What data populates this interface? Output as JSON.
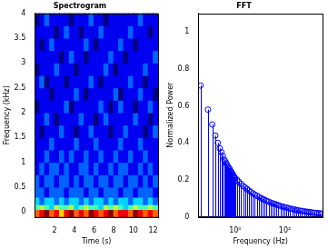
{
  "chart_data": [
    {
      "type": "heatmap",
      "title": "Spectrogram",
      "xlabel": "Time (s)",
      "ylabel": "Frequency (kHz)",
      "color": "jet",
      "grid": false,
      "xlim": [
        0,
        12.5
      ],
      "xticks": [
        2,
        4,
        6,
        8,
        10,
        12
      ],
      "ylim": [
        -0.1,
        4
      ],
      "yticks": [
        0,
        0.5,
        1,
        1.5,
        2,
        2.5,
        3,
        3.5,
        4
      ],
      "x_edges": [
        0,
        0.5,
        1,
        1.5,
        2,
        2.5,
        3,
        3.5,
        4,
        4.5,
        5,
        5.5,
        6,
        6.5,
        7,
        7.5,
        8,
        8.5,
        9,
        9.5,
        10,
        10.5,
        11,
        11.5,
        12,
        12.5
      ],
      "y_edges": [
        -0.1,
        0.05,
        0.15,
        0.3,
        0.5,
        0.75,
        1,
        1.25,
        1.5,
        1.75,
        2,
        2.25,
        2.5,
        2.75,
        3,
        3.25,
        3.5,
        3.75,
        4
      ],
      "cells": [
        [
          8,
          9,
          10,
          8,
          9,
          7,
          9,
          10,
          8,
          9,
          8,
          10,
          9,
          8,
          9,
          10,
          8,
          9,
          9,
          8,
          10,
          9,
          8,
          9,
          8
        ],
        [
          5,
          6,
          5,
          4,
          6,
          5,
          5,
          6,
          4,
          5,
          6,
          5,
          5,
          4,
          6,
          5,
          6,
          5,
          4,
          5,
          6,
          5,
          5,
          6,
          5
        ],
        [
          4,
          3,
          4,
          4,
          3,
          4,
          3,
          4,
          4,
          3,
          4,
          3,
          4,
          4,
          3,
          4,
          3,
          4,
          4,
          3,
          4,
          4,
          3,
          4,
          3
        ],
        [
          3,
          3,
          2,
          3,
          3,
          3,
          2,
          3,
          3,
          3,
          2,
          3,
          3,
          2,
          3,
          3,
          3,
          2,
          3,
          3,
          2,
          3,
          3,
          3,
          2
        ],
        [
          3,
          2,
          3,
          3,
          2,
          3,
          3,
          2,
          3,
          2,
          3,
          3,
          2,
          3,
          3,
          2,
          3,
          3,
          2,
          3,
          3,
          2,
          3,
          2,
          3
        ],
        [
          2,
          3,
          2,
          3,
          3,
          2,
          3,
          2,
          2,
          3,
          3,
          2,
          3,
          2,
          2,
          3,
          2,
          3,
          3,
          2,
          2,
          3,
          2,
          3,
          2
        ],
        [
          2,
          2,
          3,
          2,
          2,
          3,
          2,
          3,
          2,
          2,
          3,
          2,
          2,
          3,
          2,
          2,
          3,
          2,
          2,
          3,
          2,
          2,
          3,
          2,
          2
        ],
        [
          2,
          2,
          2,
          3,
          2,
          2,
          2,
          2,
          3,
          2,
          2,
          2,
          3,
          2,
          2,
          2,
          2,
          3,
          2,
          2,
          2,
          3,
          2,
          2,
          2
        ],
        [
          2,
          1,
          2,
          2,
          2,
          3,
          2,
          2,
          1,
          2,
          2,
          3,
          2,
          2,
          2,
          1,
          2,
          2,
          3,
          2,
          2,
          2,
          1,
          2,
          3
        ],
        [
          2,
          2,
          3,
          2,
          1,
          2,
          2,
          2,
          2,
          3,
          2,
          2,
          1,
          2,
          3,
          2,
          2,
          2,
          2,
          2,
          3,
          2,
          2,
          1,
          2
        ],
        [
          1,
          2,
          2,
          2,
          2,
          2,
          3,
          1,
          2,
          2,
          2,
          2,
          2,
          3,
          2,
          1,
          2,
          3,
          2,
          2,
          1,
          2,
          2,
          3,
          2
        ],
        [
          2,
          2,
          2,
          1,
          2,
          2,
          2,
          2,
          3,
          2,
          1,
          2,
          2,
          2,
          2,
          2,
          3,
          1,
          2,
          2,
          2,
          3,
          2,
          2,
          1
        ],
        [
          2,
          3,
          1,
          2,
          2,
          2,
          1,
          2,
          2,
          2,
          2,
          3,
          2,
          1,
          2,
          2,
          2,
          2,
          2,
          3,
          2,
          2,
          1,
          2,
          2
        ],
        [
          1,
          2,
          2,
          2,
          3,
          2,
          2,
          2,
          1,
          2,
          2,
          2,
          2,
          2,
          3,
          2,
          1,
          2,
          2,
          2,
          2,
          2,
          3,
          2,
          2
        ],
        [
          2,
          2,
          2,
          2,
          2,
          1,
          2,
          3,
          2,
          2,
          1,
          2,
          2,
          2,
          2,
          3,
          2,
          2,
          1,
          2,
          2,
          2,
          2,
          2,
          3
        ],
        [
          2,
          1,
          2,
          3,
          2,
          2,
          2,
          2,
          2,
          2,
          3,
          2,
          1,
          2,
          2,
          2,
          2,
          3,
          2,
          2,
          1,
          2,
          2,
          2,
          2
        ],
        [
          2,
          2,
          2,
          2,
          1,
          2,
          3,
          2,
          2,
          1,
          2,
          2,
          2,
          3,
          2,
          2,
          2,
          2,
          2,
          3,
          2,
          2,
          2,
          1,
          2
        ],
        [
          1,
          2,
          3,
          2,
          2,
          2,
          2,
          1,
          2,
          2,
          2,
          3,
          2,
          2,
          1,
          2,
          2,
          2,
          2,
          2,
          2,
          3,
          2,
          2,
          2
        ]
      ]
    },
    {
      "type": "stem",
      "title": "FFT",
      "xlabel": "Frequency (Hz)",
      "ylabel": "Normalized Power",
      "color": "#0000ff",
      "marker": "o",
      "line_style": "solid",
      "grid": false,
      "log": "x",
      "xlim": [
        0.033,
        3300
      ],
      "xticks": [
        {
          "value": 1,
          "label": "10⁰"
        },
        {
          "value": 100,
          "label": "10²"
        }
      ],
      "ylim": [
        0,
        1.1
      ],
      "yticks": [
        0,
        0.2,
        0.4,
        0.6,
        0.8,
        1
      ],
      "x": [
        0.04,
        0.08,
        0.12,
        0.16,
        0.2,
        0.24,
        0.28,
        0.32,
        0.36,
        0.4,
        0.44,
        0.48,
        0.52,
        0.56,
        0.6,
        0.64,
        0.68,
        0.72,
        0.76,
        0.8,
        0.84,
        0.88,
        0.92,
        0.96,
        1,
        1.2,
        1.4,
        1.7,
        2.1,
        2.5,
        3,
        3.6,
        4.3,
        5.2,
        6.2,
        7.4,
        8.9,
        11,
        13,
        15,
        18,
        22,
        27,
        32,
        38,
        46,
        55,
        66,
        80,
        95,
        115,
        140,
        165,
        200,
        240,
        285,
        340,
        410,
        490,
        590,
        710,
        850,
        1000,
        1200,
        1500,
        1800,
        2100,
        2500,
        3000
      ],
      "values": [
        0.71,
        0.58,
        0.5,
        0.44,
        0.4,
        0.37,
        0.35,
        0.33,
        0.31,
        0.3,
        0.29,
        0.28,
        0.27,
        0.265,
        0.26,
        0.25,
        0.245,
        0.24,
        0.235,
        0.23,
        0.225,
        0.22,
        0.215,
        0.21,
        0.21,
        0.2,
        0.19,
        0.179,
        0.168,
        0.16,
        0.151,
        0.143,
        0.135,
        0.128,
        0.121,
        0.115,
        0.109,
        0.102,
        0.097,
        0.093,
        0.088,
        0.083,
        0.078,
        0.074,
        0.071,
        0.067,
        0.063,
        0.06,
        0.056,
        0.054,
        0.051,
        0.048,
        0.045,
        0.043,
        0.041,
        0.038,
        0.036,
        0.034,
        0.033,
        0.031,
        0.029,
        0.028,
        0.026,
        0.025,
        0.023,
        0.022,
        0.021,
        0.02,
        0.019
      ]
    }
  ]
}
